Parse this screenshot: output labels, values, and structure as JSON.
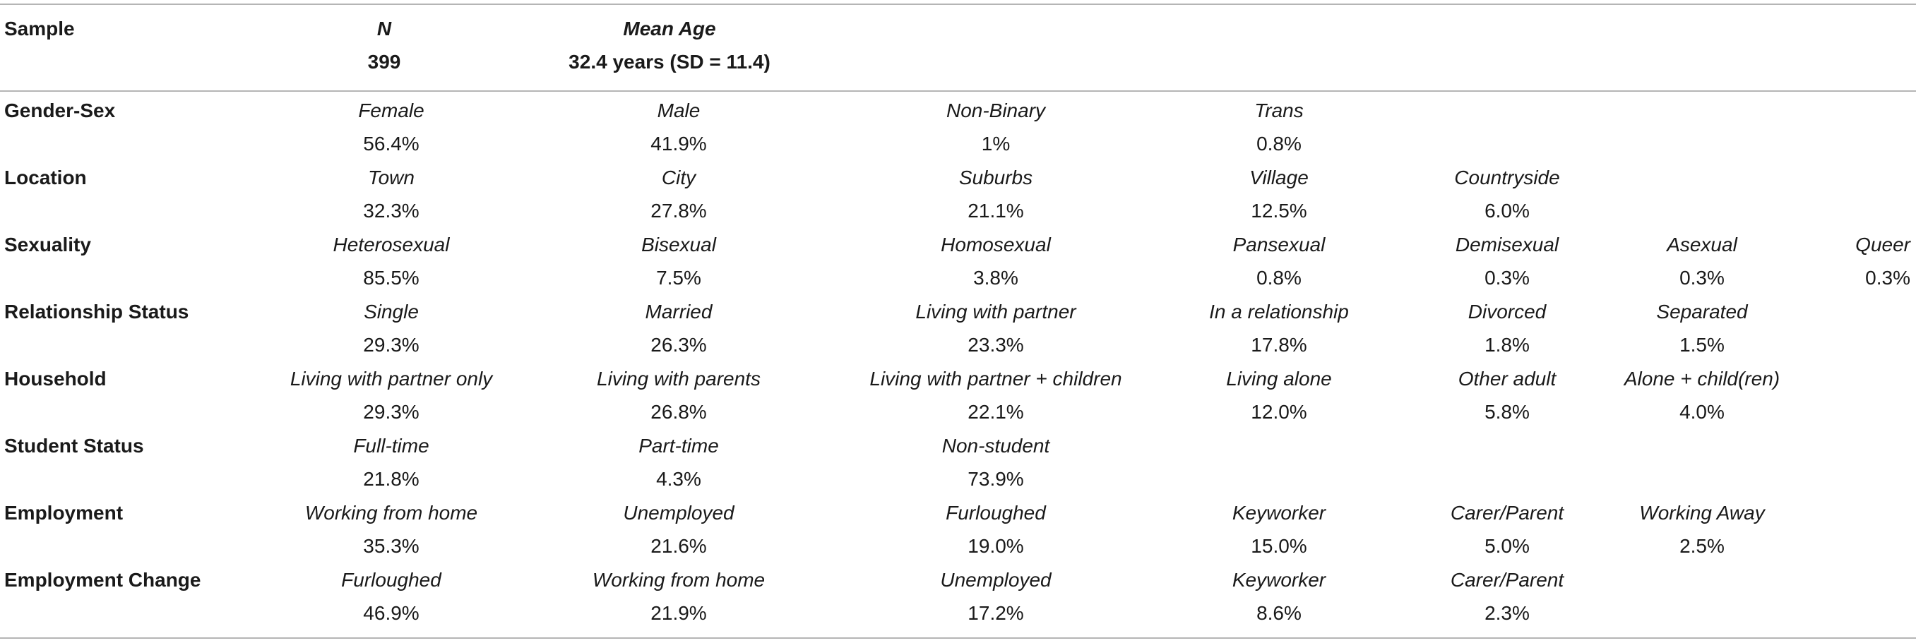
{
  "header": {
    "sample_label": "Sample",
    "columns": [
      {
        "title": "N",
        "value": "399"
      },
      {
        "title": "Mean Age",
        "value": "32.4 years (SD = 11.4)"
      }
    ]
  },
  "rows": [
    {
      "label": "Gender-Sex",
      "cells": [
        {
          "category": "Female",
          "value": "56.4%"
        },
        {
          "category": "Male",
          "value": "41.9%"
        },
        {
          "category": "Non-Binary",
          "value": "1%"
        },
        {
          "category": "Trans",
          "value": "0.8%"
        }
      ]
    },
    {
      "label": "Location",
      "cells": [
        {
          "category": "Town",
          "value": "32.3%"
        },
        {
          "category": "City",
          "value": "27.8%"
        },
        {
          "category": "Suburbs",
          "value": "21.1%"
        },
        {
          "category": "Village",
          "value": "12.5%"
        },
        {
          "category": "Countryside",
          "value": "6.0%"
        }
      ]
    },
    {
      "label": "Sexuality",
      "cells": [
        {
          "category": "Heterosexual",
          "value": "85.5%"
        },
        {
          "category": "Bisexual",
          "value": "7.5%"
        },
        {
          "category": "Homosexual",
          "value": "3.8%"
        },
        {
          "category": "Pansexual",
          "value": "0.8%"
        },
        {
          "category": "Demisexual",
          "value": "0.3%"
        },
        {
          "category": "Asexual",
          "value": "0.3%"
        },
        {
          "category": "Queer",
          "value": "0.3%"
        }
      ]
    },
    {
      "label": "Relationship Status",
      "cells": [
        {
          "category": "Single",
          "value": "29.3%"
        },
        {
          "category": "Married",
          "value": "26.3%"
        },
        {
          "category": "Living with partner",
          "value": "23.3%"
        },
        {
          "category": "In a relationship",
          "value": "17.8%"
        },
        {
          "category": "Divorced",
          "value": "1.8%"
        },
        {
          "category": "Separated",
          "value": "1.5%"
        }
      ]
    },
    {
      "label": "Household",
      "cells": [
        {
          "category": "Living with partner only",
          "value": "29.3%"
        },
        {
          "category": "Living with parents",
          "value": "26.8%"
        },
        {
          "category": "Living with partner + children",
          "value": "22.1%"
        },
        {
          "category": "Living alone",
          "value": "12.0%"
        },
        {
          "category": "Other adult",
          "value": "5.8%"
        },
        {
          "category": "Alone + child(ren)",
          "value": "4.0%"
        }
      ]
    },
    {
      "label": "Student Status",
      "cells": [
        {
          "category": "Full-time",
          "value": "21.8%"
        },
        {
          "category": "Part-time",
          "value": "4.3%"
        },
        {
          "category": "Non-student",
          "value": "73.9%"
        }
      ]
    },
    {
      "label": "Employment",
      "cells": [
        {
          "category": "Working from home",
          "value": "35.3%"
        },
        {
          "category": "Unemployed",
          "value": "21.6%"
        },
        {
          "category": "Furloughed",
          "value": "19.0%"
        },
        {
          "category": "Keyworker",
          "value": "15.0%"
        },
        {
          "category": "Carer/Parent",
          "value": "5.0%"
        },
        {
          "category": "Working Away",
          "value": "2.5%"
        }
      ]
    },
    {
      "label": "Employment Change",
      "cells": [
        {
          "category": "Furloughed",
          "value": "46.9%"
        },
        {
          "category": "Working from home",
          "value": "21.9%"
        },
        {
          "category": "Unemployed",
          "value": "17.2%"
        },
        {
          "category": "Keyworker",
          "value": "8.6%"
        },
        {
          "category": "Carer/Parent",
          "value": "2.3%"
        }
      ]
    }
  ]
}
